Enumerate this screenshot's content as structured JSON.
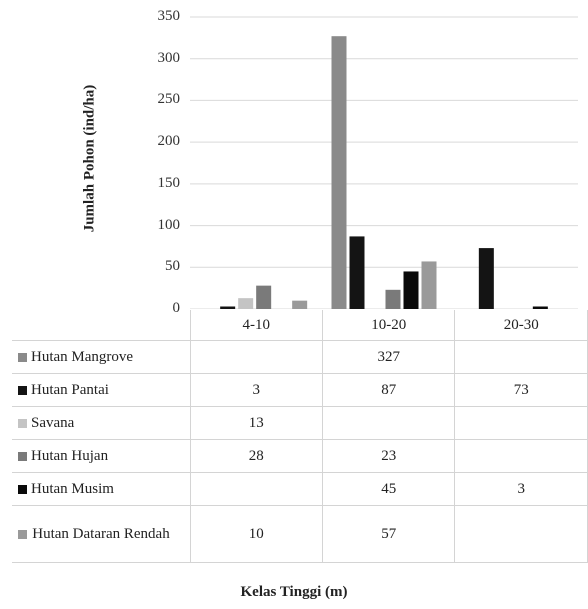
{
  "chart_data": {
    "type": "bar",
    "categories": [
      "4-10",
      "10-20",
      "20-30"
    ],
    "series": [
      {
        "name": "Hutan Mangrove",
        "color": "#8a8a8a",
        "values": [
          null,
          327,
          null
        ]
      },
      {
        "name": "Hutan Pantai",
        "color": "#141414",
        "values": [
          3,
          87,
          73
        ]
      },
      {
        "name": "Savana",
        "color": "#c4c4c4",
        "values": [
          13,
          null,
          null
        ]
      },
      {
        "name": "Hutan Hujan",
        "color": "#7a7a7a",
        "values": [
          28,
          23,
          null
        ]
      },
      {
        "name": "Hutan Musim",
        "color": "#0a0a0a",
        "values": [
          null,
          45,
          3
        ]
      },
      {
        "name": "Hutan Dataran Rendah",
        "color": "#9a9a9a",
        "values": [
          10,
          57,
          null
        ]
      }
    ],
    "ylim": [
      0,
      350
    ],
    "yticks": [
      "0",
      "50",
      "100",
      "150",
      "200",
      "250",
      "300",
      "350"
    ],
    "ylabel": "Jumlah Pohon (ind/ha)",
    "xlabel": "Kelas Tinggi (m)",
    "grid": true,
    "legend": "data-table-below"
  }
}
